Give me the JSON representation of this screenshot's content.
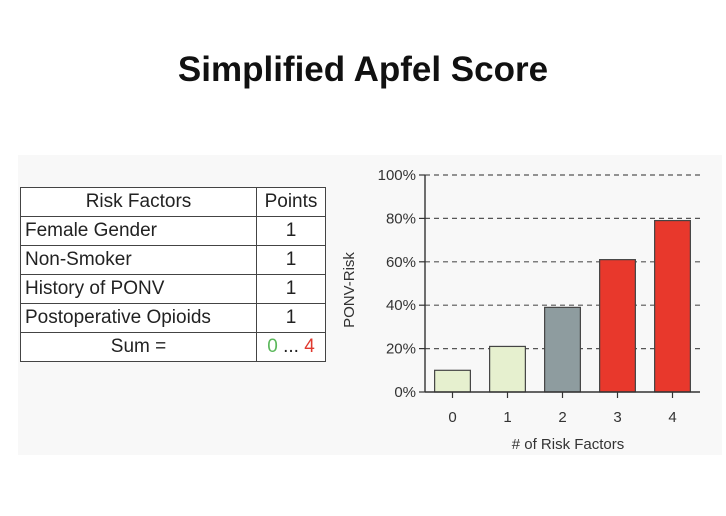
{
  "title": "Simplified Apfel Score",
  "table": {
    "headers": [
      "Risk Factors",
      "Points"
    ],
    "rows": [
      {
        "factor": "Female Gender",
        "points": "1"
      },
      {
        "factor": "Non-Smoker",
        "points": "1"
      },
      {
        "factor": "History of PONV",
        "points": "1"
      },
      {
        "factor": "Postoperative Opioids",
        "points": "1"
      }
    ],
    "sum_label": "Sum =",
    "sum_min": "0",
    "sum_sep": " ... ",
    "sum_max": "4",
    "sum_min_color": "#5cb85c",
    "sum_max_color": "#e03a2f"
  },
  "chart_data": {
    "type": "bar",
    "categories": [
      "0",
      "1",
      "2",
      "3",
      "4"
    ],
    "values": [
      10,
      21,
      39,
      61,
      79
    ],
    "bar_colors": [
      "#e6f0cf",
      "#e6f0cf",
      "#8e9c9f",
      "#e8382c",
      "#e8382c"
    ],
    "xlabel": "# of Risk Factors",
    "ylabel": "PONV-Risk",
    "ylim": [
      0,
      100
    ],
    "yticks": [
      0,
      20,
      40,
      60,
      80,
      100
    ],
    "ytick_labels": [
      "0%",
      "20%",
      "40%",
      "60%",
      "80%",
      "100%"
    ],
    "grid": "dashed horizontal",
    "legend": "none"
  }
}
